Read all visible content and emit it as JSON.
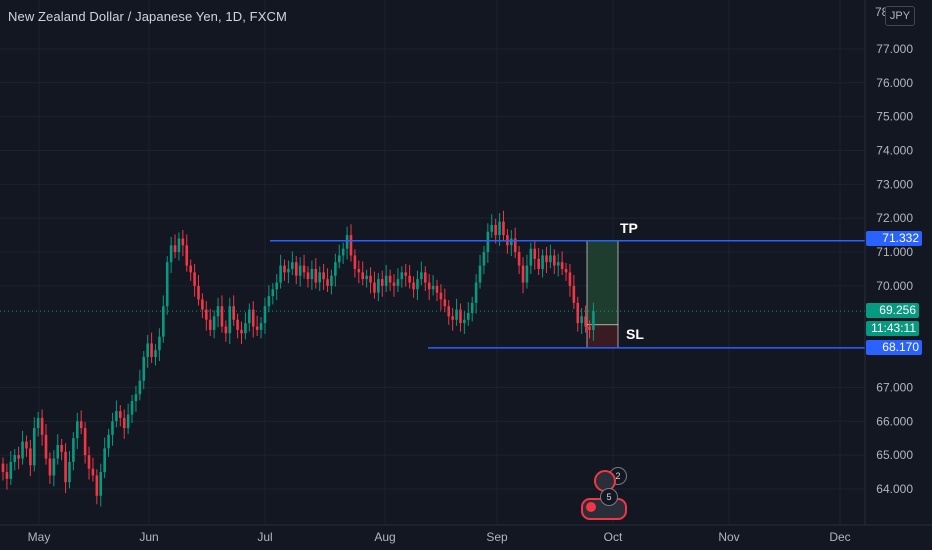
{
  "header": {
    "title": "New Zealand Dollar / Japanese Yen, 1D, FXCM",
    "currency_button": "JPY",
    "axis_top_partial": "78"
  },
  "price_axis": {
    "ticks": [
      "77.000",
      "76.000",
      "75.000",
      "74.000",
      "73.000",
      "72.000",
      "71.000",
      "70.000",
      "67.000",
      "66.000",
      "65.000",
      "64.000"
    ]
  },
  "time_axis": {
    "labels": [
      "May",
      "Jun",
      "Jul",
      "Aug",
      "Sep",
      "Oct",
      "Nov",
      "Dec"
    ]
  },
  "markers": {
    "tp_price": "71.332",
    "last_price": "69.256",
    "countdown": "11:43:11",
    "sl_price": "68.170",
    "tp_label": "TP",
    "sl_label": "SL"
  },
  "events": {
    "badge_upper": "2",
    "badge_lower": "5"
  },
  "colors": {
    "background": "#131722",
    "up": "#089981",
    "down": "#f23645",
    "line_blue": "#2962ff",
    "axis_text": "#b2b5be",
    "tp_zone": "#1e3d2e",
    "sl_zone": "#3a1b22"
  },
  "chart_data": {
    "type": "candlestick",
    "title": "New Zealand Dollar / Japanese Yen, 1D, FXCM",
    "y_unit": "JPY",
    "ylim": [
      62.9,
      78.0
    ],
    "x_labels": [
      "May",
      "Jun",
      "Jul",
      "Aug",
      "Sep",
      "Oct",
      "Nov",
      "Dec"
    ],
    "horizontal_levels": [
      {
        "label": "TP",
        "price": 71.332
      },
      {
        "label": "SL",
        "price": 68.17
      },
      {
        "label": "last",
        "price": 69.256
      }
    ],
    "closes": [
      64.5,
      64.3,
      64.8,
      65.0,
      64.9,
      65.4,
      65.2,
      64.7,
      65.8,
      66.1,
      65.6,
      64.9,
      64.4,
      64.9,
      65.3,
      65.1,
      64.2,
      64.8,
      65.5,
      66.0,
      65.8,
      65.0,
      64.6,
      64.4,
      63.8,
      64.5,
      65.2,
      65.6,
      66.0,
      66.3,
      66.1,
      65.8,
      66.2,
      66.6,
      66.8,
      67.2,
      67.9,
      68.3,
      67.9,
      68.1,
      68.5,
      69.4,
      70.7,
      71.2,
      71.0,
      71.4,
      71.2,
      70.6,
      70.4,
      70.0,
      69.6,
      69.3,
      69.0,
      68.7,
      69.1,
      69.4,
      68.8,
      68.6,
      69.4,
      69.0,
      68.7,
      68.6,
      68.9,
      69.3,
      68.8,
      68.7,
      68.9,
      69.4,
      69.7,
      69.9,
      70.1,
      70.6,
      70.4,
      70.5,
      70.7,
      70.3,
      70.6,
      70.4,
      70.2,
      70.5,
      70.1,
      70.4,
      70.2,
      70.0,
      70.3,
      70.7,
      70.9,
      71.1,
      71.5,
      70.9,
      70.5,
      70.4,
      70.2,
      70.3,
      70.1,
      69.8,
      70.2,
      70.0,
      70.3,
      70.1,
      70.0,
      70.2,
      70.4,
      70.3,
      70.1,
      69.9,
      70.2,
      70.4,
      70.1,
      69.9,
      70.0,
      69.8,
      69.6,
      69.4,
      69.1,
      69.0,
      69.3,
      68.9,
      69.0,
      69.2,
      69.5,
      70.1,
      70.6,
      71.0,
      71.6,
      71.8,
      71.5,
      71.9,
      71.5,
      71.2,
      71.4,
      71.0,
      70.6,
      70.1,
      70.6,
      71.1,
      70.8,
      70.5,
      70.9,
      70.7,
      70.9,
      70.6,
      70.7,
      70.5,
      70.4,
      70.0,
      69.5,
      68.9,
      69.1,
      68.8,
      68.7,
      69.256
    ]
  }
}
